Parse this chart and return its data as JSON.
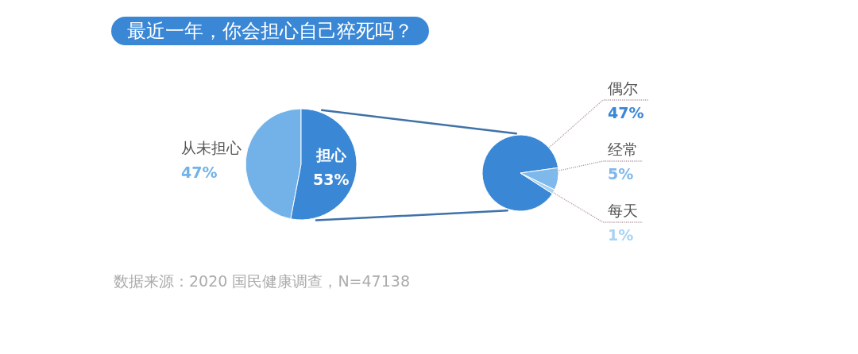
{
  "chart_data": [
    {
      "type": "pie",
      "title": "最近一年，你会担心自己猝死吗？",
      "categories": [
        "从未担心",
        "担心"
      ],
      "values": [
        47,
        53
      ],
      "colors": [
        "#72b2e8",
        "#3a87d6"
      ],
      "value_labels": [
        "47%",
        "53%"
      ],
      "annotations": [
        "数据来源：2020 国民健康调查，N=47138"
      ]
    },
    {
      "type": "pie",
      "categories": [
        "偶尔",
        "经常",
        "每天"
      ],
      "values": [
        47,
        5,
        1
      ],
      "colors": [
        "#3a87d6",
        "#7fb8ea",
        "#a9d3f3"
      ],
      "value_labels": [
        "47%",
        "5%",
        "1%"
      ]
    }
  ]
}
